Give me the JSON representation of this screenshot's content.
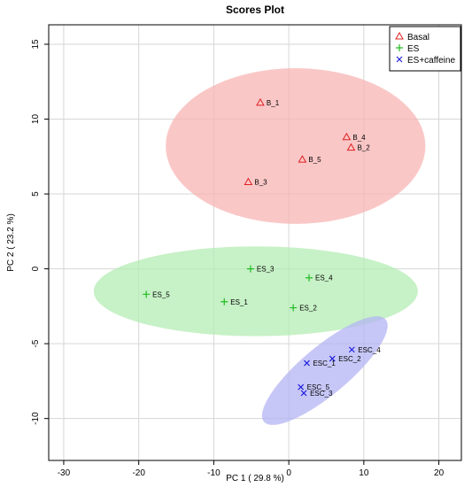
{
  "chart_data": {
    "type": "scatter",
    "title": "Scores Plot",
    "xlabel": "PC 1 ( 29.8 %)",
    "ylabel": "PC 2 ( 23.2 %)",
    "xlim": [
      -32,
      23
    ],
    "ylim": [
      -12.8,
      16.3
    ],
    "xticks": [
      -30,
      -20,
      -10,
      0,
      10,
      20
    ],
    "yticks": [
      -10,
      -5,
      0,
      5,
      10,
      15
    ],
    "grid": true,
    "legend_position": "top-right",
    "series": [
      {
        "name": "Basal",
        "marker": "triangle",
        "color": "#df2020",
        "ellipse_color": "#f8b4b4",
        "points": [
          {
            "label": "B_1",
            "x": -3.8,
            "y": 11.1
          },
          {
            "label": "B_4",
            "x": 7.7,
            "y": 8.8
          },
          {
            "label": "B_2",
            "x": 8.3,
            "y": 8.1
          },
          {
            "label": "B_5",
            "x": 1.8,
            "y": 7.3
          },
          {
            "label": "B_3",
            "x": -5.4,
            "y": 5.8
          }
        ]
      },
      {
        "name": "ES",
        "marker": "plus",
        "color": "#22bb22",
        "ellipse_color": "#b4ecb4",
        "points": [
          {
            "label": "ES_3",
            "x": -5.1,
            "y": 0.0
          },
          {
            "label": "ES_4",
            "x": 2.7,
            "y": -0.6
          },
          {
            "label": "ES_5",
            "x": -19.0,
            "y": -1.7
          },
          {
            "label": "ES_1",
            "x": -8.6,
            "y": -2.2
          },
          {
            "label": "ES_2",
            "x": 0.6,
            "y": -2.6
          }
        ]
      },
      {
        "name": "ES+caffeine",
        "marker": "cross",
        "color": "#2020dd",
        "ellipse_color": "#b4b4f4",
        "points": [
          {
            "label": "ESC_4",
            "x": 8.4,
            "y": -5.4
          },
          {
            "label": "ESC_2",
            "x": 5.8,
            "y": -6.0
          },
          {
            "label": "ESC_1",
            "x": 2.4,
            "y": -6.3
          },
          {
            "label": "ESC_5",
            "x": 1.6,
            "y": -7.9
          },
          {
            "label": "ESC_3",
            "x": 2.0,
            "y": -8.3
          }
        ]
      }
    ],
    "ellipses": [
      {
        "series": "Basal",
        "cx": 0.9,
        "cy": 8.2,
        "rx": 17.3,
        "ry": 5.2,
        "angle_deg": 0
      },
      {
        "series": "ES",
        "cx": -4.4,
        "cy": -1.5,
        "rx": 21.6,
        "ry": 3.0,
        "angle_deg": 0
      },
      {
        "series": "ES+caffeine",
        "cx": 4.8,
        "cy": -6.8,
        "rx": 10.6,
        "ry": 1.6,
        "angle_deg": 40
      }
    ]
  }
}
